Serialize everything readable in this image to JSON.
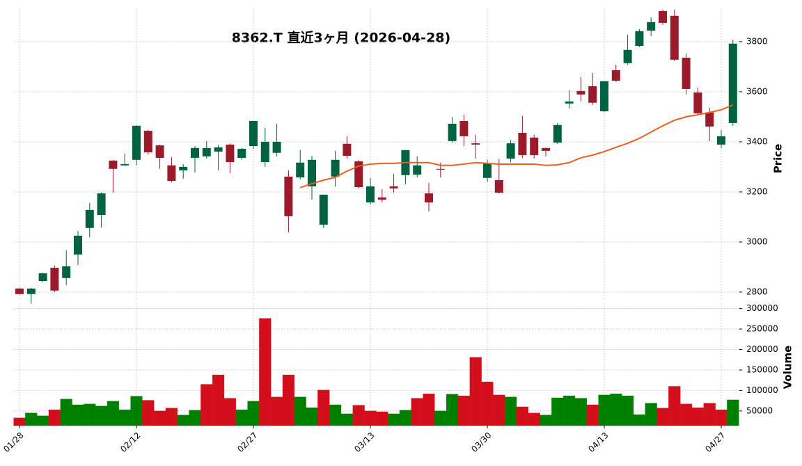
{
  "chart_data": [
    {
      "type": "candlestick",
      "title": "8362.T  直近3ヶ月  (2026-04-28)",
      "ylabel": "Price",
      "categories": [
        "01/28",
        null,
        null,
        null,
        null,
        null,
        null,
        null,
        null,
        null,
        "02/12",
        null,
        null,
        null,
        null,
        null,
        null,
        null,
        null,
        null,
        "02/27",
        null,
        null,
        null,
        null,
        null,
        null,
        null,
        null,
        null,
        "03/13",
        null,
        null,
        null,
        null,
        null,
        null,
        null,
        null,
        null,
        "03/30",
        null,
        null,
        null,
        null,
        null,
        null,
        null,
        null,
        null,
        "04/13",
        null,
        null,
        null,
        null,
        null,
        null,
        null,
        null,
        null,
        "04/27",
        null
      ],
      "open": [
        2814,
        2792,
        2844,
        2897,
        2856,
        2950,
        3056,
        3108,
        3325,
        3306,
        3328,
        3444,
        3386,
        3306,
        3286,
        3336,
        3342,
        3361,
        3389,
        3336,
        3383,
        3319,
        3356,
        3261,
        3258,
        3222,
        3069,
        3261,
        3392,
        3322,
        3158,
        3178,
        3222,
        3267,
        3269,
        3194,
        3292,
        3403,
        3483,
        3394,
        3256,
        3247,
        3333,
        3436,
        3417,
        3375,
        3397,
        3553,
        3603,
        3622,
        3522,
        3686,
        3714,
        3783,
        3844,
        3922,
        3903,
        3736,
        3597,
        3517,
        3389,
        3475
      ],
      "high": [
        2817,
        2817,
        2878,
        2906,
        2967,
        3044,
        3156,
        3197,
        3328,
        3353,
        3467,
        3447,
        3389,
        3339,
        3311,
        3383,
        3403,
        3389,
        3394,
        3375,
        3483,
        3456,
        3472,
        3286,
        3367,
        3344,
        3189,
        3364,
        3422,
        3328,
        3256,
        3211,
        3272,
        3367,
        3342,
        3236,
        3317,
        3500,
        3508,
        3428,
        3328,
        3331,
        3408,
        3503,
        3428,
        3378,
        3475,
        3606,
        3658,
        3675,
        3642,
        3708,
        3828,
        3850,
        3897,
        3928,
        3928,
        3753,
        3617,
        3536,
        3447,
        3808
      ],
      "low": [
        2790,
        2753,
        2840,
        2800,
        2828,
        2908,
        3019,
        3058,
        3197,
        3303,
        3306,
        3350,
        3292,
        3239,
        3253,
        3278,
        3333,
        3286,
        3275,
        3328,
        3372,
        3300,
        3342,
        3039,
        3250,
        3169,
        3056,
        3222,
        3333,
        3214,
        3150,
        3158,
        3197,
        3231,
        3258,
        3122,
        3258,
        3397,
        3383,
        3333,
        3239,
        3194,
        3319,
        3336,
        3333,
        3342,
        3392,
        3533,
        3561,
        3547,
        3519,
        3639,
        3708,
        3778,
        3822,
        3867,
        3722,
        3589,
        3506,
        3403,
        3375,
        3464
      ],
      "close": [
        2792,
        2814,
        2875,
        2806,
        2903,
        3025,
        3128,
        3194,
        3292,
        3311,
        3464,
        3358,
        3336,
        3244,
        3300,
        3375,
        3375,
        3378,
        3319,
        3372,
        3483,
        3400,
        3400,
        3103,
        3317,
        3328,
        3189,
        3328,
        3344,
        3219,
        3222,
        3169,
        3214,
        3367,
        3306,
        3158,
        3289,
        3472,
        3422,
        3389,
        3314,
        3197,
        3394,
        3347,
        3347,
        3364,
        3467,
        3561,
        3589,
        3556,
        3642,
        3644,
        3767,
        3842,
        3878,
        3875,
        3728,
        3611,
        3514,
        3461,
        3422,
        3792
      ],
      "up_color": "#006340",
      "down_color": "#9b1b2b",
      "ma": {
        "color": "#e8601c",
        "values": [
          null,
          null,
          null,
          null,
          null,
          null,
          null,
          null,
          null,
          null,
          null,
          null,
          null,
          null,
          null,
          null,
          null,
          null,
          null,
          null,
          null,
          null,
          null,
          null,
          3217,
          3233,
          3247,
          3258,
          3283,
          3303,
          3311,
          3314,
          3314,
          3317,
          3317,
          3317,
          3306,
          3306,
          3311,
          3317,
          3314,
          3311,
          3311,
          3311,
          3311,
          3306,
          3308,
          3317,
          3336,
          3347,
          3361,
          3378,
          3394,
          3414,
          3439,
          3464,
          3486,
          3500,
          3508,
          3517,
          3528,
          3547
        ]
      },
      "ylim": [
        2772,
        3933
      ],
      "yticks": [
        2800,
        3000,
        3200,
        3400,
        3600,
        3800
      ],
      "grid": true
    },
    {
      "type": "bar",
      "ylabel": "Volume",
      "values": [
        33000,
        45000,
        38000,
        53000,
        79000,
        65000,
        67000,
        62000,
        74000,
        53000,
        86000,
        76000,
        50000,
        57000,
        40000,
        52000,
        115000,
        138000,
        81000,
        53000,
        74000,
        276000,
        84000,
        138000,
        84000,
        58000,
        101000,
        65000,
        43000,
        64000,
        50000,
        48000,
        43000,
        52000,
        81000,
        92000,
        50000,
        91000,
        87000,
        181000,
        121000,
        89000,
        84000,
        60000,
        45000,
        40000,
        82000,
        87000,
        81000,
        65000,
        89000,
        92000,
        87000,
        41000,
        69000,
        57000,
        110000,
        67000,
        58000,
        69000,
        53000,
        77000
      ],
      "colors": [
        "#d40f1c",
        "#008000",
        "#008000",
        "#d40f1c",
        "#008000",
        "#008000",
        "#008000",
        "#008000",
        "#008000",
        "#008000",
        "#008000",
        "#d40f1c",
        "#d40f1c",
        "#d40f1c",
        "#008000",
        "#008000",
        "#d40f1c",
        "#d40f1c",
        "#d40f1c",
        "#008000",
        "#008000",
        "#d40f1c",
        "#d40f1c",
        "#d40f1c",
        "#008000",
        "#008000",
        "#d40f1c",
        "#008000",
        "#008000",
        "#d40f1c",
        "#d40f1c",
        "#d40f1c",
        "#008000",
        "#008000",
        "#d40f1c",
        "#d40f1c",
        "#008000",
        "#008000",
        "#d40f1c",
        "#d40f1c",
        "#d40f1c",
        "#d40f1c",
        "#008000",
        "#d40f1c",
        "#d40f1c",
        "#008000",
        "#008000",
        "#008000",
        "#008000",
        "#d40f1c",
        "#008000",
        "#008000",
        "#008000",
        "#008000",
        "#008000",
        "#d40f1c",
        "#d40f1c",
        "#d40f1c",
        "#d40f1c",
        "#d40f1c",
        "#d40f1c",
        "#008000"
      ],
      "ylim": [
        14000,
        313000
      ],
      "yticks": [
        50000,
        100000,
        150000,
        200000,
        250000,
        300000
      ],
      "grid": true
    }
  ]
}
